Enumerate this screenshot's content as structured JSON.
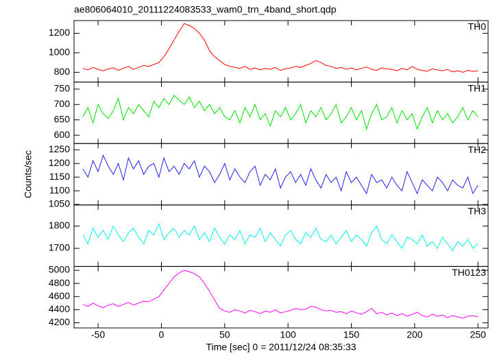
{
  "title": "ae806064010_20111224083533_wam0_trn_4band_short.qdp",
  "y_label": "Counts/sec",
  "x_label": "Time [sec] 0 = 2011/12/24 08:35:33",
  "x": [
    -62,
    -58,
    -54,
    -50,
    -46,
    -42,
    -38,
    -34,
    -30,
    -26,
    -22,
    -18,
    -14,
    -10,
    -6,
    -2,
    2,
    6,
    10,
    14,
    18,
    22,
    26,
    30,
    34,
    38,
    42,
    46,
    50,
    54,
    58,
    62,
    66,
    70,
    74,
    78,
    82,
    86,
    90,
    94,
    98,
    102,
    106,
    110,
    114,
    118,
    122,
    126,
    130,
    134,
    138,
    142,
    146,
    150,
    154,
    158,
    162,
    166,
    170,
    174,
    178,
    182,
    186,
    190,
    194,
    198,
    202,
    206,
    210,
    214,
    218,
    222,
    226,
    230,
    234,
    238,
    242,
    246,
    250
  ],
  "xlim": [
    -69,
    258
  ],
  "xticks": [
    -50,
    0,
    50,
    100,
    150,
    200,
    250
  ],
  "chart_data": [
    {
      "type": "line",
      "label": "TH0",
      "color": "#ff0000",
      "ylim": [
        700,
        1330
      ],
      "yticks": [
        800,
        1000,
        1200
      ],
      "values": [
        840,
        825,
        850,
        830,
        815,
        835,
        845,
        820,
        840,
        860,
        830,
        850,
        870,
        860,
        880,
        900,
        960,
        1040,
        1130,
        1220,
        1300,
        1280,
        1250,
        1200,
        1130,
        1020,
        960,
        920,
        880,
        860,
        850,
        840,
        860,
        830,
        845,
        825,
        840,
        830,
        850,
        820,
        835,
        845,
        860,
        850,
        870,
        890,
        920,
        900,
        870,
        860,
        840,
        850,
        830,
        845,
        825,
        840,
        855,
        830,
        820,
        845,
        835,
        830,
        815,
        840,
        825,
        860,
        830,
        820,
        810,
        835,
        825,
        815,
        830,
        805,
        815,
        800,
        820,
        810,
        815
      ]
    },
    {
      "type": "line",
      "label": "TH1",
      "color": "#00e000",
      "ylim": [
        573,
        773
      ],
      "yticks": [
        600,
        650,
        700,
        750
      ],
      "values": [
        660,
        690,
        640,
        700,
        670,
        655,
        680,
        720,
        650,
        690,
        670,
        700,
        680,
        660,
        710,
        690,
        720,
        700,
        730,
        715,
        700,
        725,
        690,
        710,
        680,
        700,
        670,
        690,
        660,
        650,
        680,
        640,
        690,
        660,
        700,
        650,
        670,
        630,
        680,
        660,
        690,
        650,
        670,
        700,
        640,
        680,
        660,
        690,
        650,
        670,
        700,
        640,
        660,
        690,
        650,
        680,
        620,
        670,
        700,
        650,
        660,
        690,
        640,
        680,
        650,
        670,
        620,
        660,
        690,
        640,
        680,
        650,
        670,
        640,
        660,
        690,
        650,
        680,
        660
      ]
    },
    {
      "type": "line",
      "label": "TH2",
      "color": "#2020ee",
      "ylim": [
        1048,
        1273
      ],
      "yticks": [
        1050,
        1100,
        1150,
        1200,
        1250
      ],
      "values": [
        1180,
        1150,
        1210,
        1170,
        1230,
        1190,
        1160,
        1200,
        1140,
        1220,
        1180,
        1210,
        1160,
        1190,
        1200,
        1150,
        1220,
        1170,
        1190,
        1160,
        1200,
        1180,
        1210,
        1150,
        1190,
        1170,
        1130,
        1160,
        1200,
        1140,
        1180,
        1150,
        1130,
        1170,
        1190,
        1120,
        1160,
        1140,
        1180,
        1110,
        1150,
        1170,
        1130,
        1160,
        1120,
        1180,
        1140,
        1110,
        1160,
        1130,
        1150,
        1100,
        1170,
        1130,
        1150,
        1120,
        1090,
        1160,
        1130,
        1140,
        1110,
        1150,
        1120,
        1100,
        1170,
        1130,
        1090,
        1140,
        1120,
        1100,
        1150,
        1130,
        1100,
        1140,
        1120,
        1110,
        1150,
        1090,
        1120
      ]
    },
    {
      "type": "line",
      "label": "TH3",
      "color": "#00eeee",
      "ylim": [
        1619,
        1894
      ],
      "yticks": [
        1700,
        1800
      ],
      "values": [
        1760,
        1720,
        1790,
        1750,
        1780,
        1740,
        1800,
        1760,
        1730,
        1770,
        1790,
        1750,
        1720,
        1780,
        1760,
        1810,
        1740,
        1770,
        1790,
        1750,
        1780,
        1760,
        1800,
        1740,
        1770,
        1730,
        1790,
        1750,
        1720,
        1760,
        1740,
        1780,
        1720,
        1760,
        1750,
        1790,
        1730,
        1770,
        1740,
        1710,
        1760,
        1780,
        1740,
        1720,
        1770,
        1750,
        1790,
        1740,
        1730,
        1760,
        1720,
        1750,
        1780,
        1730,
        1760,
        1740,
        1710,
        1770,
        1800,
        1740,
        1720,
        1760,
        1730,
        1700,
        1750,
        1740,
        1720,
        1760,
        1710,
        1730,
        1700,
        1750,
        1720,
        1690,
        1730,
        1710,
        1740,
        1700,
        1720
      ]
    },
    {
      "type": "line",
      "label": "TH0123",
      "color": "#ff00ff",
      "ylim": [
        4122,
        5059
      ],
      "yticks": [
        4200,
        4400,
        4600,
        4800,
        5000
      ],
      "values": [
        4480,
        4450,
        4500,
        4460,
        4430,
        4470,
        4490,
        4450,
        4480,
        4510,
        4470,
        4500,
        4530,
        4520,
        4560,
        4600,
        4700,
        4800,
        4900,
        4960,
        5000,
        4980,
        4950,
        4900,
        4800,
        4680,
        4550,
        4420,
        4380,
        4360,
        4400,
        4380,
        4350,
        4390,
        4370,
        4340,
        4380,
        4360,
        4400,
        4350,
        4370,
        4390,
        4420,
        4400,
        4410,
        4450,
        4440,
        4400,
        4380,
        4390,
        4360,
        4370,
        4340,
        4380,
        4350,
        4330,
        4370,
        4420,
        4340,
        4360,
        4320,
        4350,
        4310,
        4340,
        4300,
        4330,
        4360,
        4310,
        4290,
        4330,
        4300,
        4320,
        4280,
        4310,
        4290,
        4270,
        4300,
        4310,
        4290
      ]
    }
  ]
}
